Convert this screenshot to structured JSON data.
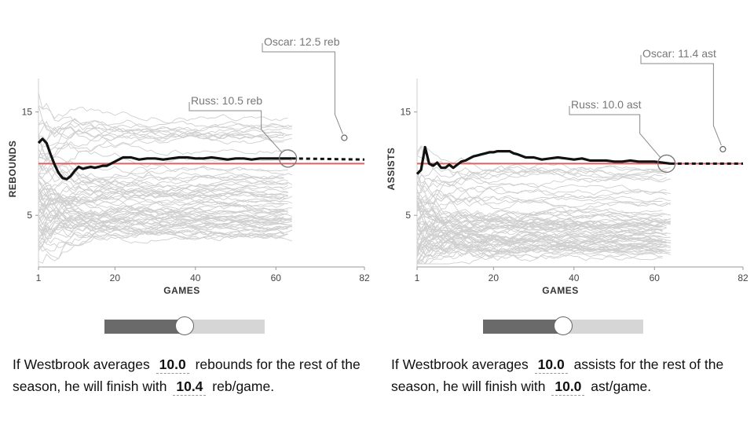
{
  "colors": {
    "player_line": "#111111",
    "reference_line": "#e06060",
    "other_players": "#cfcfcf",
    "annotation": "#888888",
    "slider_track": "#d6d6d6",
    "slider_fill": "#6a6a6a"
  },
  "chart_data": [
    {
      "type": "line",
      "ylabel": "REBOUNDS",
      "xlabel": "GAMES",
      "xlim": [
        1,
        82
      ],
      "ylim": [
        0,
        19
      ],
      "x_ticks": [
        "1",
        "20",
        "40",
        "60",
        "82"
      ],
      "y_ticks": [
        "5",
        "15"
      ],
      "grid": false,
      "reference_value": 10.0,
      "series": [
        {
          "name": "Russ",
          "x": [
            1,
            2,
            3,
            4,
            5,
            6,
            7,
            8,
            9,
            10,
            11,
            12,
            13,
            14,
            15,
            16,
            17,
            18,
            19,
            20,
            22,
            24,
            26,
            28,
            30,
            32,
            34,
            36,
            38,
            40,
            42,
            44,
            46,
            48,
            50,
            52,
            54,
            56,
            58,
            60,
            62,
            64
          ],
          "y": [
            12.0,
            12.4,
            12.0,
            10.9,
            9.9,
            9.1,
            8.6,
            8.5,
            8.8,
            9.3,
            9.7,
            9.5,
            9.6,
            9.7,
            9.6,
            9.7,
            9.8,
            9.8,
            10.0,
            10.2,
            10.6,
            10.6,
            10.4,
            10.5,
            10.5,
            10.4,
            10.5,
            10.6,
            10.6,
            10.5,
            10.5,
            10.6,
            10.5,
            10.4,
            10.5,
            10.5,
            10.4,
            10.5,
            10.5,
            10.5,
            10.5,
            10.5
          ]
        },
        {
          "name": "projection",
          "x": [
            64,
            82
          ],
          "y": [
            10.5,
            10.4
          ]
        },
        {
          "name": "Oscar",
          "x": [
            77
          ],
          "y": [
            12.5
          ]
        }
      ],
      "annotations": [
        {
          "label": "Russ: 10.5 reb",
          "x": 63,
          "y": 10.5
        },
        {
          "label": "Oscar: 12.5 reb",
          "x": 77,
          "y": 12.5
        }
      ]
    },
    {
      "type": "line",
      "ylabel": "ASSISTS",
      "xlabel": "GAMES",
      "xlim": [
        1,
        82
      ],
      "ylim": [
        0,
        19
      ],
      "x_ticks": [
        "1",
        "20",
        "40",
        "60",
        "82"
      ],
      "y_ticks": [
        "5",
        "15"
      ],
      "grid": false,
      "reference_value": 10.0,
      "series": [
        {
          "name": "Russ",
          "x": [
            1,
            2,
            3,
            4,
            5,
            6,
            7,
            8,
            9,
            10,
            11,
            12,
            13,
            14,
            15,
            16,
            17,
            18,
            19,
            20,
            21,
            22,
            23,
            24,
            25,
            26,
            28,
            30,
            32,
            34,
            36,
            38,
            40,
            42,
            44,
            46,
            48,
            50,
            52,
            54,
            56,
            58,
            60,
            62,
            64
          ],
          "y": [
            9.0,
            9.4,
            11.6,
            10.0,
            9.8,
            10.1,
            9.6,
            9.6,
            9.9,
            9.6,
            9.9,
            10.2,
            10.3,
            10.5,
            10.7,
            10.8,
            10.9,
            11.0,
            11.1,
            11.1,
            11.2,
            11.2,
            11.2,
            11.2,
            11.0,
            10.9,
            10.6,
            10.6,
            10.4,
            10.5,
            10.6,
            10.5,
            10.4,
            10.5,
            10.3,
            10.3,
            10.3,
            10.2,
            10.2,
            10.3,
            10.2,
            10.2,
            10.2,
            10.1,
            10.0
          ]
        },
        {
          "name": "projection",
          "x": [
            64,
            82
          ],
          "y": [
            10.0,
            10.0
          ]
        },
        {
          "name": "Oscar",
          "x": [
            77
          ],
          "y": [
            11.4
          ]
        }
      ],
      "annotations": [
        {
          "label": "Russ: 10.0 ast",
          "x": 63,
          "y": 10.0
        },
        {
          "label": "Oscar: 11.4 ast",
          "x": 77,
          "y": 11.4
        }
      ]
    }
  ],
  "sliders": [
    {
      "fraction": 0.5,
      "value": "10.0"
    },
    {
      "fraction": 0.5,
      "value": "10.0"
    }
  ],
  "sentences": {
    "left": {
      "part1": "If Westbrook averages",
      "input_value": "10.0",
      "part2": "rebounds for the rest of the season, he will finish with",
      "result_value": "10.4",
      "part3": "reb/game."
    },
    "right": {
      "part1": "If Westbrook averages",
      "input_value": "10.0",
      "part2": "assists for the rest of the season, he will finish with",
      "result_value": "10.0",
      "part3": "ast/game."
    }
  }
}
